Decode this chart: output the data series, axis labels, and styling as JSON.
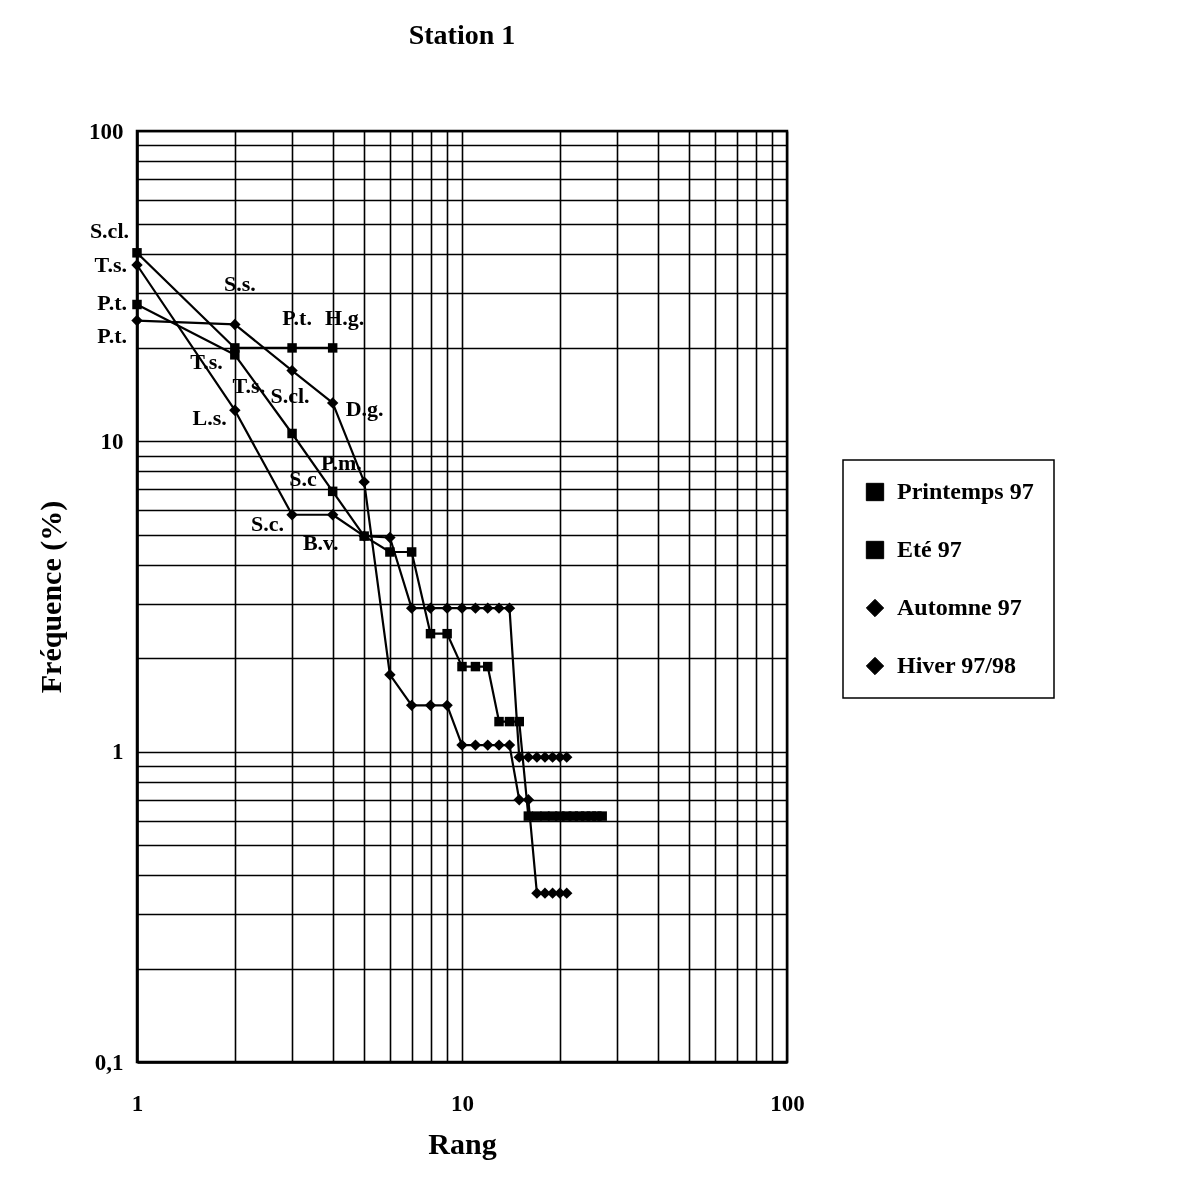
{
  "chart_data": {
    "type": "line",
    "title": "Station 1",
    "xlabel": "Rang",
    "ylabel": "Fréquence (%)",
    "log": "xy",
    "grid": true,
    "legend": "right",
    "line_style": "solid",
    "xlim": [
      1,
      100
    ],
    "xticks": [
      1,
      10,
      100
    ],
    "ylim": [
      0.1,
      100
    ],
    "yticks": [
      {
        "value": 0.1,
        "label": "0,1"
      },
      1,
      10,
      100
    ],
    "series": [
      {
        "name": "Printemps 97",
        "color": "#000000",
        "marker": "square",
        "x": [
          1,
          2,
          3,
          4,
          5,
          6,
          7,
          8,
          9,
          10,
          11,
          12,
          13,
          14,
          15,
          16,
          17,
          18,
          19,
          20,
          21,
          22,
          23,
          24,
          25,
          26,
          27
        ],
        "values": [
          27.6,
          19,
          10.6,
          6.9,
          4.95,
          4.4,
          4.4,
          2.4,
          2.4,
          1.88,
          1.88,
          1.88,
          1.25,
          1.25,
          1.25,
          0.62,
          0.62,
          0.62,
          0.62,
          0.62,
          0.62,
          0.62,
          0.62,
          0.62,
          0.62,
          0.62,
          0.62
        ]
      },
      {
        "name": "Eté 97",
        "color": "#000000",
        "marker": "square",
        "x": [
          1,
          2,
          3,
          4
        ],
        "values": [
          40.5,
          20,
          20,
          20
        ]
      },
      {
        "name": "Automne 97",
        "color": "#000000",
        "marker": "diamond",
        "x": [
          1,
          2,
          3,
          4,
          5,
          6,
          7,
          8,
          9,
          10,
          11,
          12,
          13,
          14,
          15,
          16,
          17,
          18,
          19,
          20,
          21
        ],
        "values": [
          37,
          12.6,
          5.8,
          5.8,
          4.95,
          4.9,
          2.9,
          2.9,
          2.9,
          2.9,
          2.9,
          2.9,
          2.9,
          2.9,
          0.96,
          0.96,
          0.96,
          0.96,
          0.96,
          0.96,
          0.96
        ]
      },
      {
        "name": "Hiver 97/98",
        "color": "#000000",
        "marker": "diamond",
        "x": [
          1,
          2,
          3,
          4,
          5,
          6,
          7,
          8,
          9,
          10,
          11,
          12,
          13,
          14,
          15,
          16,
          17,
          18,
          19,
          20,
          21
        ],
        "values": [
          24.5,
          23.8,
          16.9,
          13.3,
          7.4,
          1.77,
          1.41,
          1.41,
          1.41,
          1.05,
          1.05,
          1.05,
          1.05,
          1.05,
          0.7,
          0.7,
          0.35,
          0.35,
          0.35,
          0.35,
          0.35
        ]
      }
    ],
    "annotations": [
      {
        "text": "S.cl.",
        "x": 1,
        "y": 40.5
      },
      {
        "text": "T.s.",
        "x": 1,
        "y": 37
      },
      {
        "text": "P.t.",
        "x": 1,
        "y": 27.6
      },
      {
        "text": "P.t.",
        "x": 1,
        "y": 24.5
      },
      {
        "text": "S.s.",
        "x": 2,
        "y": 23.8
      },
      {
        "text": "T.s.",
        "x": 2,
        "y": 20
      },
      {
        "text": "P.t.",
        "x": 3,
        "y": 20
      },
      {
        "text": "H.g.",
        "x": 4,
        "y": 20
      },
      {
        "text": "T.s.",
        "x": 2,
        "y": 19
      },
      {
        "text": "S.cl.",
        "x": 3,
        "y": 16.9
      },
      {
        "text": "D.g.",
        "x": 4,
        "y": 13.3
      },
      {
        "text": "L.s.",
        "x": 2,
        "y": 12.6
      },
      {
        "text": "P.m.",
        "x": 3,
        "y": 10.6
      },
      {
        "text": "S.c",
        "x": 4,
        "y": 6.9
      },
      {
        "text": "S.c.",
        "x": 3,
        "y": 5.8
      },
      {
        "text": "B.v.",
        "x": 4,
        "y": 5.8
      }
    ]
  }
}
